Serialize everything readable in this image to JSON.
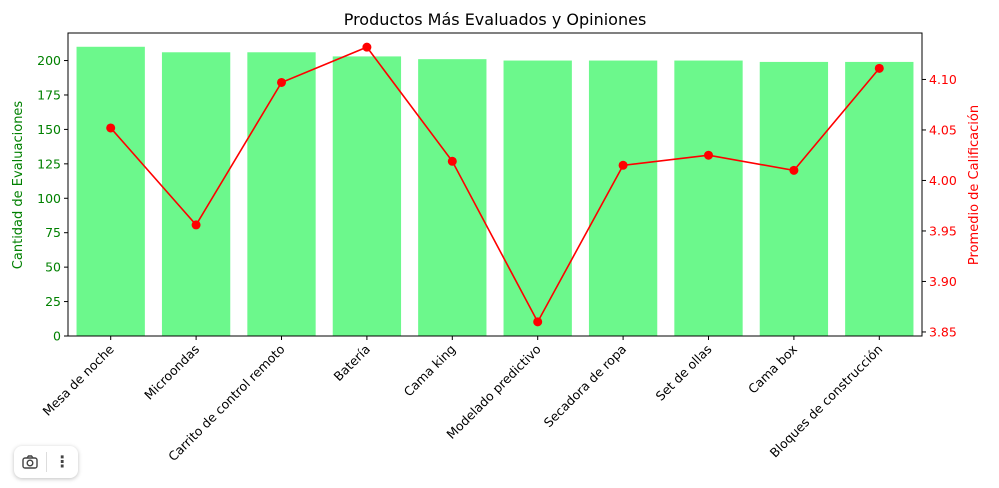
{
  "chart_data": {
    "type": "bar",
    "title": "Productos Más Evaluados y Opiniones",
    "categories": [
      "Mesa de noche",
      "Microondas",
      "Carrito de control remoto",
      "Batería",
      "Cama king",
      "Modelado predictivo",
      "Secadora de ropa",
      "Set de ollas",
      "Cama box",
      "Bloques de construcción"
    ],
    "series": [
      {
        "type": "bar",
        "axis": "left",
        "color": "#6cf88c",
        "values": [
          210,
          206,
          206,
          203,
          201,
          200,
          200,
          200,
          199,
          199
        ]
      },
      {
        "type": "line",
        "axis": "right",
        "color": "#ff0000",
        "values": [
          4.052,
          3.956,
          4.097,
          4.132,
          4.019,
          3.86,
          4.015,
          4.025,
          4.01,
          4.111
        ]
      }
    ],
    "ylabel_left": "Cantidad de Evaluaciones",
    "ylabel_right": "Promedio de Calificación",
    "ylim_left": [
      0,
      220
    ],
    "ylim_right": [
      3.846,
      4.146
    ],
    "yticks_left": [
      0,
      25,
      50,
      75,
      100,
      125,
      150,
      175,
      200
    ],
    "yticks_right": [
      "3.85",
      "3.90",
      "3.95",
      "4.00",
      "4.05",
      "4.10"
    ],
    "left_axis_color": "#008000",
    "right_axis_color": "#ff0000",
    "grid": false,
    "legend": "none"
  },
  "toolbar": {
    "icons": [
      "camera-icon",
      "more-vertical-icon"
    ],
    "more_glyph": "⋮"
  }
}
